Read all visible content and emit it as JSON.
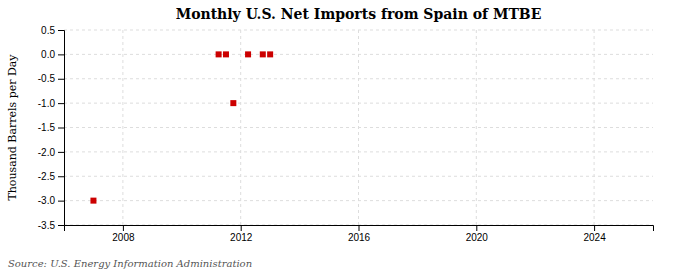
{
  "chart_data": {
    "type": "scatter",
    "title": "Monthly U.S. Net Imports from Spain of MTBE",
    "y_label": "Thousand Barrels per Day",
    "source": "Source: U.S. Energy Information Administration",
    "x": [
      2007.0,
      2011.25,
      2011.5,
      2011.75,
      2012.25,
      2012.75,
      2013.0
    ],
    "values": [
      -3.0,
      0.0,
      0.0,
      -1.0,
      0.0,
      0.0,
      0.0
    ],
    "color": "#cc0000",
    "marker": "square",
    "xlim": [
      2006.0,
      2026.0
    ],
    "ylim": [
      -3.5,
      0.5
    ],
    "xticks": [
      2008,
      2012,
      2016,
      2020,
      2024
    ],
    "yticks": [
      0.5,
      {
        "value": 0,
        "label": "0.0"
      },
      {
        "value": -0.5,
        "label": "-0.5"
      },
      {
        "value": -1,
        "label": "-1.0"
      },
      {
        "value": -1.5,
        "label": "-1.5"
      },
      {
        "value": -2,
        "label": "-2.0"
      },
      {
        "value": -2.5,
        "label": "-2.5"
      },
      {
        "value": -3,
        "label": "-3.0"
      },
      -3.5
    ],
    "grid": true
  }
}
